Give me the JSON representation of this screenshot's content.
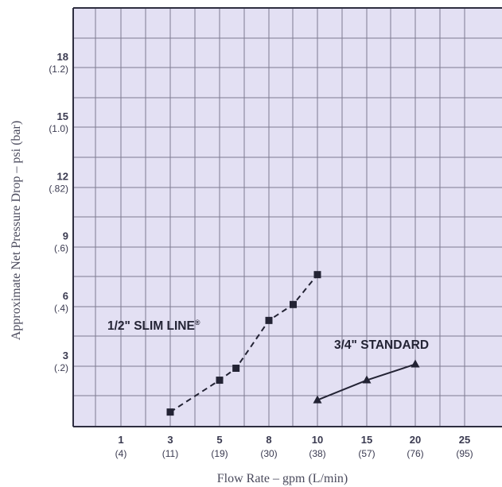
{
  "chart_data": {
    "type": "line",
    "title": "",
    "xlabel": "Flow Rate – gpm (L/min)",
    "ylabel": "Approximate Net Pressure Drop – psi (bar)",
    "x_ticks": [
      {
        "value": 1,
        "label": "1",
        "sublabel": "(4)"
      },
      {
        "value": 3,
        "label": "3",
        "sublabel": "(11)"
      },
      {
        "value": 5,
        "label": "5",
        "sublabel": "(19)"
      },
      {
        "value": 8,
        "label": "8",
        "sublabel": "(30)"
      },
      {
        "value": 10,
        "label": "10",
        "sublabel": "(38)"
      },
      {
        "value": 15,
        "label": "15",
        "sublabel": "(57)"
      },
      {
        "value": 20,
        "label": "20",
        "sublabel": "(76)"
      },
      {
        "value": 25,
        "label": "25",
        "sublabel": "(95)"
      }
    ],
    "y_ticks": [
      {
        "value": 3,
        "label": "3",
        "sublabel": "(.2)"
      },
      {
        "value": 6,
        "label": "6",
        "sublabel": "(.4)"
      },
      {
        "value": 9,
        "label": "9",
        "sublabel": "(.6)"
      },
      {
        "value": 12,
        "label": "12",
        "sublabel": "(.82)"
      },
      {
        "value": 15,
        "label": "15",
        "sublabel": "(1.0)"
      },
      {
        "value": 18,
        "label": "18",
        "sublabel": "(1.2)"
      }
    ],
    "grid": true,
    "series": [
      {
        "name": "1/2\" SLIM LINE",
        "name_mark": "®",
        "marker": "square",
        "line": "dashed",
        "points": [
          {
            "x": 3,
            "y": 0.7
          },
          {
            "x": 5,
            "y": 2.3
          },
          {
            "x": 6,
            "y": 2.9
          },
          {
            "x": 8,
            "y": 5.3
          },
          {
            "x": 9,
            "y": 6.1
          },
          {
            "x": 10,
            "y": 7.6
          }
        ]
      },
      {
        "name": "3/4\" STANDARD",
        "marker": "triangle",
        "line": "solid",
        "points": [
          {
            "x": 10,
            "y": 1.3
          },
          {
            "x": 15,
            "y": 2.3
          },
          {
            "x": 20,
            "y": 3.1
          }
        ]
      }
    ],
    "colors": {
      "plot_background": "#e3e0f3",
      "grid": "#7e7a90",
      "frame": "#2e2e40",
      "series": "#232334"
    }
  }
}
